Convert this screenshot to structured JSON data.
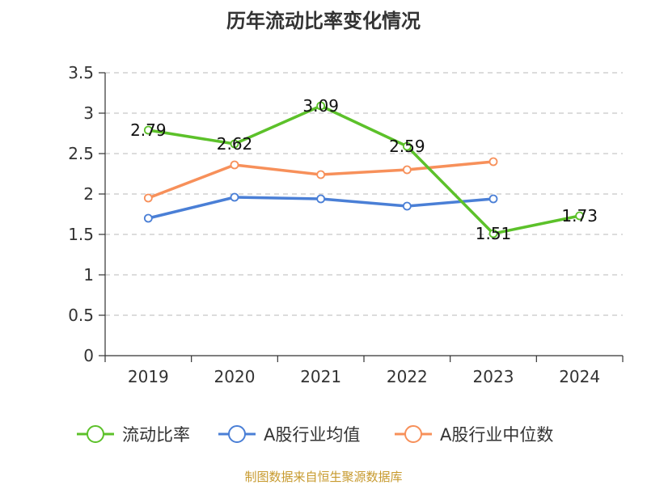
{
  "chart_data": {
    "type": "line",
    "title": "历年流动比率变化情况",
    "categories": [
      "2019",
      "2020",
      "2021",
      "2022",
      "2023",
      "2024"
    ],
    "ylim": [
      0,
      3.5
    ],
    "yticks": [
      0,
      0.5,
      1,
      1.5,
      2,
      2.5,
      3,
      3.5
    ],
    "ytick_labels": [
      "0",
      "0.5",
      "1",
      "1.5",
      "2",
      "2.5",
      "3",
      "3.5"
    ],
    "grid": true,
    "legend_position": "bottom",
    "series": [
      {
        "name": "流动比率",
        "color": "#5cc12a",
        "values": [
          2.79,
          2.62,
          3.09,
          2.59,
          1.51,
          1.73
        ],
        "labels": [
          "2.79",
          "2.62",
          "3.09",
          "2.59",
          "1.51",
          "1.73"
        ]
      },
      {
        "name": "A股行业均值",
        "color": "#4a7fd6",
        "values": [
          1.7,
          1.96,
          1.94,
          1.85,
          1.94,
          null
        ],
        "labels": null
      },
      {
        "name": "A股行业中位数",
        "color": "#f7905a",
        "values": [
          1.95,
          2.36,
          2.24,
          2.3,
          2.4,
          null
        ],
        "labels": null
      }
    ]
  },
  "source": "制图数据来自恒生聚源数据库"
}
